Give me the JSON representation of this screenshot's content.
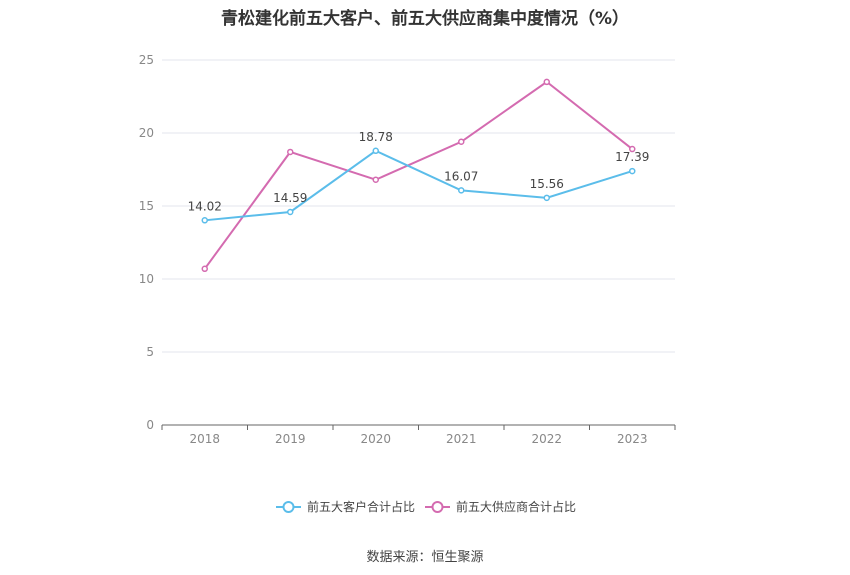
{
  "title": "青松建化前五大客户、前五大供应商集中度情况（%）",
  "source": "数据来源：恒生聚源",
  "chart_data": {
    "type": "line",
    "title": "青松建化前五大客户、前五大供应商集中度情况（%）",
    "xlabel": "",
    "ylabel": "",
    "categories": [
      "2018",
      "2019",
      "2020",
      "2021",
      "2022",
      "2023"
    ],
    "ylim": [
      0,
      25
    ],
    "yticks": [
      0,
      5,
      10,
      15,
      20,
      25
    ],
    "grid": true,
    "legend_position": "bottom",
    "series": [
      {
        "name": "前五大客户合计占比",
        "color": "#5bbdea",
        "values": [
          14.02,
          14.59,
          18.78,
          16.07,
          15.56,
          17.39
        ],
        "labels": [
          "14.02",
          "14.59",
          "18.78",
          "16.07",
          "15.56",
          "17.39"
        ]
      },
      {
        "name": "前五大供应商合计占比",
        "color": "#d46bb0",
        "values": [
          10.7,
          18.7,
          16.8,
          19.4,
          23.5,
          18.9
        ],
        "labels": []
      }
    ]
  }
}
